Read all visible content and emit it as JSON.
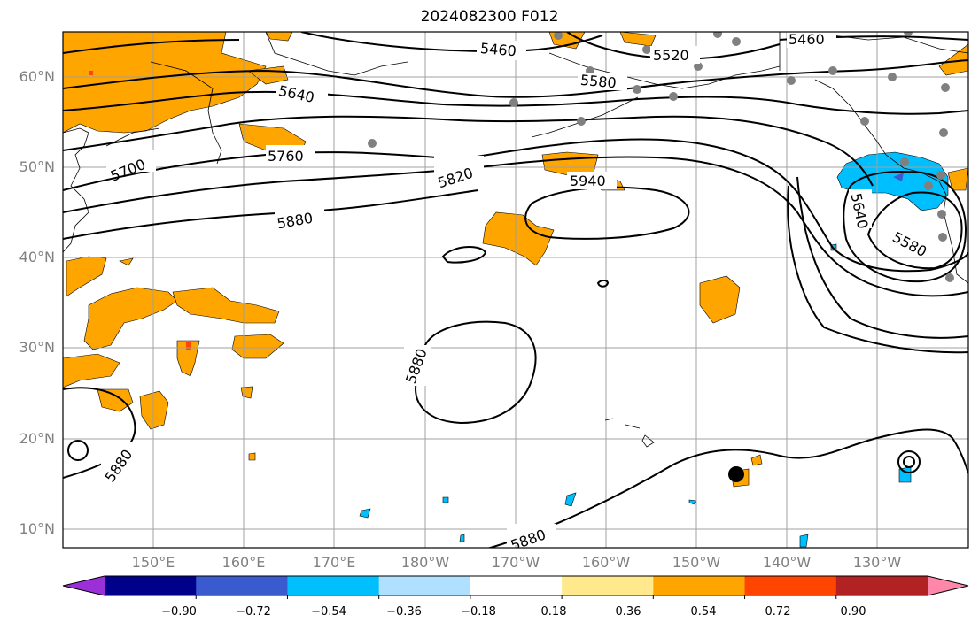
{
  "title": "2024082300 F012",
  "lat_labels": [
    "60°N",
    "50°N",
    "40°N",
    "30°N",
    "20°N",
    "10°N"
  ],
  "lon_labels": [
    "150°E",
    "160°E",
    "170°E",
    "180°W",
    "170°W",
    "160°W",
    "150°W",
    "140°W",
    "130°W"
  ],
  "colorbar": {
    "ticks": [
      "−0.90",
      "−0.72",
      "−0.54",
      "−0.36",
      "−0.18",
      "0.18",
      "0.36",
      "0.54",
      "0.72",
      "0.90"
    ],
    "colors": [
      "#9b30d9",
      "#00008b",
      "#3a5bcf",
      "#00bfff",
      "#b0e0ff",
      "#ffffff",
      "#ffe98c",
      "#ffa500",
      "#ff4500",
      "#b22222",
      "#ff88aa"
    ]
  },
  "contour_labels": [
    "5460",
    "5520",
    "5580",
    "5640",
    "5700",
    "5760",
    "5820",
    "5880",
    "5940",
    "5460",
    "5640",
    "5580",
    "5880",
    "5880",
    "5880"
  ],
  "map": {
    "lat_range": [
      8,
      65
    ],
    "lon_range_east": [
      140,
      240
    ]
  }
}
